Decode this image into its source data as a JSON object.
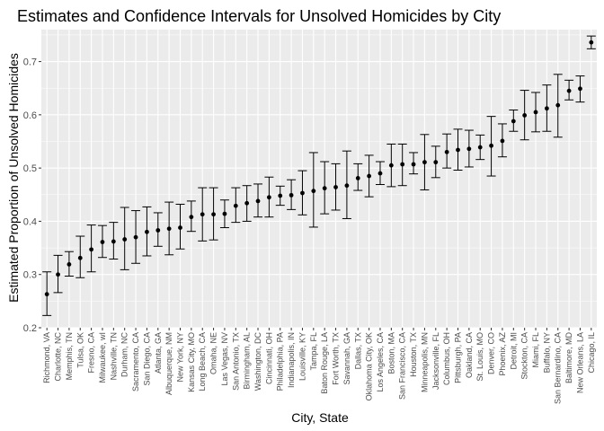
{
  "chart_data": {
    "type": "scatter",
    "title": "Estimates and Confidence Intervals for Unsolved Homicides by City",
    "xlabel": "City, State",
    "ylabel": "Estimated Proportion of Unsolved Homicides",
    "ylim": [
      0.2,
      0.76
    ],
    "yticks": [
      0.2,
      0.3,
      0.4,
      0.5,
      0.6,
      0.7
    ],
    "ytick_labels": [
      "0.2",
      "0.3",
      "0.4",
      "0.5",
      "0.6",
      "0.7"
    ],
    "grid": true,
    "background": "#ebebeb",
    "point_color": "#000000",
    "categories": [
      "Richmond, VA",
      "Charlotte, NC",
      "Memphis, TN",
      "Tulsa, OK",
      "Fresno, CA",
      "Milwaukee, wI",
      "Nashville, TN",
      "Durham, NC",
      "Sacramento, CA",
      "San Diego, CA",
      "Atlanta, GA",
      "Albuquerque, NM",
      "New York, NY",
      "Kansas City, MO",
      "Long Beach, CA",
      "Omaha, NE",
      "Las Vegas, NV",
      "San Antonio, TX",
      "Birmingham, AL",
      "Washington, DC",
      "Cincinnati, OH",
      "Philadelphia, PA",
      "Indianapolis, IN",
      "Louisville, KY",
      "Tampa, FL",
      "Baton Rouge, LA",
      "Fort Worth, TX",
      "Savannah, GA",
      "Dallas, TX",
      "Oklahoma City, OK",
      "Los Angeles, CA",
      "Boston, MA",
      "San Francisco, CA",
      "Houston, TX",
      "Minneapolis, MN",
      "Jacksonville, FL",
      "Columbus, OH",
      "Pittsburgh, PA",
      "Oakland, CA",
      "St. Louis, MO",
      "Denver, CO",
      "Phoenix, AZ",
      "Detroit, MI",
      "Stockton, CA",
      "Miami, FL",
      "Buffalo, NY",
      "San Bernardino, CA",
      "Baltimore, MD",
      "New Orleans, LA",
      "Chicago, IL"
    ],
    "estimate": [
      0.263,
      0.3,
      0.319,
      0.331,
      0.347,
      0.361,
      0.362,
      0.366,
      0.37,
      0.38,
      0.383,
      0.386,
      0.388,
      0.408,
      0.413,
      0.413,
      0.414,
      0.429,
      0.434,
      0.438,
      0.445,
      0.448,
      0.449,
      0.453,
      0.457,
      0.462,
      0.464,
      0.467,
      0.481,
      0.485,
      0.49,
      0.505,
      0.507,
      0.507,
      0.511,
      0.511,
      0.53,
      0.534,
      0.536,
      0.539,
      0.542,
      0.551,
      0.588,
      0.599,
      0.605,
      0.612,
      0.618,
      0.645,
      0.649,
      0.736
    ],
    "lower": [
      0.223,
      0.266,
      0.297,
      0.294,
      0.305,
      0.332,
      0.329,
      0.309,
      0.321,
      0.335,
      0.353,
      0.337,
      0.348,
      0.381,
      0.363,
      0.365,
      0.388,
      0.398,
      0.4,
      0.408,
      0.408,
      0.43,
      0.422,
      0.412,
      0.389,
      0.414,
      0.421,
      0.405,
      0.458,
      0.446,
      0.469,
      0.465,
      0.467,
      0.489,
      0.459,
      0.482,
      0.5,
      0.496,
      0.502,
      0.516,
      0.485,
      0.521,
      0.569,
      0.553,
      0.568,
      0.569,
      0.558,
      0.628,
      0.624,
      0.724
    ],
    "upper": [
      0.305,
      0.336,
      0.343,
      0.372,
      0.393,
      0.392,
      0.398,
      0.426,
      0.42,
      0.427,
      0.416,
      0.436,
      0.432,
      0.438,
      0.463,
      0.463,
      0.44,
      0.463,
      0.467,
      0.47,
      0.483,
      0.466,
      0.478,
      0.495,
      0.529,
      0.512,
      0.508,
      0.532,
      0.508,
      0.524,
      0.512,
      0.545,
      0.545,
      0.529,
      0.563,
      0.541,
      0.564,
      0.573,
      0.571,
      0.562,
      0.597,
      0.583,
      0.609,
      0.646,
      0.642,
      0.656,
      0.676,
      0.665,
      0.673,
      0.748
    ]
  }
}
